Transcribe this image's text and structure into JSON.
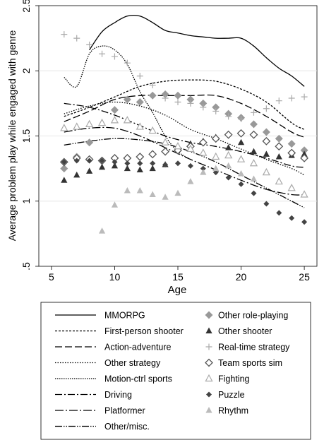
{
  "chart_data": {
    "type": "line",
    "xlabel": "Age",
    "ylabel": "Average problem play while engaged with genre",
    "xlim": [
      4,
      26
    ],
    "ylim": [
      0.5,
      2.5
    ],
    "xticks": [
      5,
      10,
      15,
      20,
      25
    ],
    "xtick_labels": [
      "5",
      "10",
      "15",
      "20",
      "25"
    ],
    "yticks": [
      0.5,
      1,
      1.5,
      2,
      2.5
    ],
    "ytick_labels": [
      ".5",
      "1",
      "1.5",
      "2",
      "2.5"
    ],
    "grid": "horizontal",
    "legend_position": "bottom",
    "line_series": [
      {
        "name": "MMORPG",
        "dash": "solid",
        "points": [
          [
            8,
            2.16
          ],
          [
            9,
            2.3
          ],
          [
            10,
            2.37
          ],
          [
            11,
            2.42
          ],
          [
            12,
            2.42
          ],
          [
            13,
            2.37
          ],
          [
            14,
            2.31
          ],
          [
            15,
            2.29
          ],
          [
            16,
            2.27
          ],
          [
            17,
            2.26
          ],
          [
            18,
            2.25
          ],
          [
            19,
            2.25
          ],
          [
            20,
            2.25
          ],
          [
            21,
            2.19
          ],
          [
            22,
            2.1
          ],
          [
            23,
            2.02
          ],
          [
            24,
            1.96
          ],
          [
            25,
            1.88
          ]
        ]
      },
      {
        "name": "First-person shooter",
        "dash": "3,2",
        "points": [
          [
            6,
            1.65
          ],
          [
            8,
            1.72
          ],
          [
            10,
            1.8
          ],
          [
            12,
            1.88
          ],
          [
            14,
            1.92
          ],
          [
            16,
            1.93
          ],
          [
            18,
            1.92
          ],
          [
            20,
            1.86
          ],
          [
            22,
            1.76
          ],
          [
            24,
            1.6
          ],
          [
            25,
            1.55
          ]
        ]
      },
      {
        "name": "Action-adventure",
        "dash": "10,4",
        "points": [
          [
            6,
            1.61
          ],
          [
            8,
            1.69
          ],
          [
            10,
            1.78
          ],
          [
            12,
            1.81
          ],
          [
            14,
            1.81
          ],
          [
            16,
            1.81
          ],
          [
            18,
            1.81
          ],
          [
            20,
            1.75
          ],
          [
            22,
            1.65
          ],
          [
            24,
            1.53
          ],
          [
            25,
            1.49
          ]
        ]
      },
      {
        "name": "Other strategy",
        "dash": "1.5,2",
        "points": [
          [
            6,
            1.67
          ],
          [
            8,
            1.73
          ],
          [
            10,
            1.76
          ],
          [
            12,
            1.73
          ],
          [
            14,
            1.66
          ],
          [
            16,
            1.55
          ],
          [
            18,
            1.48
          ],
          [
            20,
            1.4
          ],
          [
            22,
            1.32
          ],
          [
            24,
            1.25
          ],
          [
            25,
            1.2
          ]
        ]
      },
      {
        "name": "Motion-ctrl sports",
        "dash": "1.5,1.5",
        "points": [
          [
            6,
            1.95
          ],
          [
            7,
            1.88
          ],
          [
            8,
            2.13
          ],
          [
            9,
            2.19
          ],
          [
            10,
            2.16
          ],
          [
            11,
            2.05
          ],
          [
            12,
            1.84
          ],
          [
            13,
            1.68
          ],
          [
            14,
            1.5
          ],
          [
            15,
            1.38
          ],
          [
            16,
            1.32
          ]
        ]
      },
      {
        "name": "Driving",
        "dash": "10,3,2,3",
        "points": [
          [
            6,
            1.75
          ],
          [
            8,
            1.72
          ],
          [
            10,
            1.66
          ],
          [
            12,
            1.58
          ],
          [
            14,
            1.5
          ],
          [
            16,
            1.45
          ],
          [
            18,
            1.42
          ],
          [
            20,
            1.38
          ],
          [
            22,
            1.33
          ],
          [
            24,
            1.27
          ],
          [
            25,
            1.26
          ]
        ]
      },
      {
        "name": "Platformer",
        "dash": "12,3,2,3",
        "points": [
          [
            6,
            1.53
          ],
          [
            8,
            1.56
          ],
          [
            10,
            1.56
          ],
          [
            12,
            1.5
          ],
          [
            14,
            1.41
          ],
          [
            16,
            1.32
          ],
          [
            18,
            1.24
          ],
          [
            20,
            1.16
          ],
          [
            22,
            1.09
          ],
          [
            24,
            1.05
          ],
          [
            25,
            1.05
          ]
        ]
      },
      {
        "name": "Other/misc.",
        "dash": "10,2,1.5,2,1.5,2",
        "points": [
          [
            6,
            1.43
          ],
          [
            8,
            1.46
          ],
          [
            10,
            1.48
          ],
          [
            12,
            1.47
          ],
          [
            14,
            1.44
          ],
          [
            16,
            1.38
          ],
          [
            18,
            1.3
          ],
          [
            20,
            1.2
          ],
          [
            22,
            1.1
          ],
          [
            24,
            1.0
          ],
          [
            25,
            0.95
          ]
        ]
      }
    ],
    "marker_series": [
      {
        "name": "Other role-playing",
        "marker": "diamond",
        "color": "#999999",
        "points": [
          [
            6,
            1.25
          ],
          [
            7,
            1.34
          ],
          [
            8,
            1.45
          ],
          [
            10,
            1.7
          ],
          [
            11,
            1.78
          ],
          [
            12,
            1.76
          ],
          [
            13,
            1.81
          ],
          [
            14,
            1.82
          ],
          [
            15,
            1.81
          ],
          [
            16,
            1.78
          ],
          [
            17,
            1.75
          ],
          [
            18,
            1.72
          ],
          [
            19,
            1.67
          ],
          [
            20,
            1.64
          ],
          [
            21,
            1.59
          ],
          [
            22,
            1.53
          ],
          [
            23,
            1.48
          ],
          [
            24,
            1.44
          ],
          [
            25,
            1.39
          ]
        ]
      },
      {
        "name": "Other shooter",
        "marker": "triangle",
        "color": "#333333",
        "points": [
          [
            6,
            1.16
          ],
          [
            7,
            1.2
          ],
          [
            8,
            1.23
          ],
          [
            9,
            1.26
          ],
          [
            10,
            1.27
          ],
          [
            11,
            1.25
          ],
          [
            12,
            1.24
          ],
          [
            13,
            1.25
          ],
          [
            14,
            1.28
          ],
          [
            15,
            1.4
          ],
          [
            16,
            1.44
          ],
          [
            17,
            1.46
          ],
          [
            18,
            1.49
          ],
          [
            19,
            1.41
          ],
          [
            20,
            1.45
          ],
          [
            21,
            1.38
          ],
          [
            22,
            1.36
          ],
          [
            23,
            1.34
          ],
          [
            24,
            1.35
          ],
          [
            25,
            1.36
          ]
        ]
      },
      {
        "name": "Real-time strategy",
        "marker": "plus",
        "color": "#aaaaaa",
        "points": [
          [
            6,
            2.28
          ],
          [
            7,
            2.25
          ],
          [
            8,
            2.2
          ],
          [
            9,
            2.13
          ],
          [
            10,
            2.11
          ],
          [
            11,
            2.06
          ],
          [
            12,
            1.96
          ],
          [
            13,
            1.89
          ],
          [
            14,
            1.79
          ],
          [
            15,
            1.76
          ],
          [
            16,
            1.75
          ],
          [
            17,
            1.72
          ],
          [
            18,
            1.69
          ],
          [
            19,
            1.65
          ],
          [
            20,
            1.63
          ],
          [
            21,
            1.68
          ],
          [
            22,
            1.71
          ],
          [
            23,
            1.77
          ],
          [
            24,
            1.79
          ],
          [
            25,
            1.8
          ]
        ]
      },
      {
        "name": "Team sports sim",
        "marker": "diamond-open",
        "color": "#555555",
        "points": [
          [
            6,
            1.3
          ],
          [
            7,
            1.33
          ],
          [
            8,
            1.32
          ],
          [
            9,
            1.31
          ],
          [
            10,
            1.33
          ],
          [
            11,
            1.33
          ],
          [
            12,
            1.34
          ],
          [
            13,
            1.36
          ],
          [
            14,
            1.38
          ],
          [
            15,
            1.39
          ],
          [
            16,
            1.42
          ],
          [
            17,
            1.45
          ],
          [
            18,
            1.48
          ],
          [
            19,
            1.51
          ],
          [
            20,
            1.52
          ],
          [
            21,
            1.51
          ],
          [
            22,
            1.46
          ],
          [
            23,
            1.42
          ],
          [
            24,
            1.37
          ],
          [
            25,
            1.33
          ]
        ]
      },
      {
        "name": "Fighting",
        "marker": "triangle-open",
        "color": "#aaaaaa",
        "points": [
          [
            6,
            1.56
          ],
          [
            7,
            1.57
          ],
          [
            8,
            1.59
          ],
          [
            9,
            1.6
          ],
          [
            10,
            1.62
          ],
          [
            11,
            1.62
          ],
          [
            12,
            1.57
          ],
          [
            13,
            1.54
          ],
          [
            14,
            1.45
          ],
          [
            15,
            1.42
          ],
          [
            16,
            1.4
          ],
          [
            17,
            1.37
          ],
          [
            18,
            1.34
          ],
          [
            19,
            1.35
          ],
          [
            20,
            1.32
          ],
          [
            21,
            1.29
          ],
          [
            22,
            1.22
          ],
          [
            23,
            1.15
          ],
          [
            24,
            1.1
          ],
          [
            25,
            1.05
          ]
        ]
      },
      {
        "name": "Puzzle",
        "marker": "diamond-small",
        "color": "#444444",
        "points": [
          [
            6,
            1.3
          ],
          [
            7,
            1.31
          ],
          [
            8,
            1.31
          ],
          [
            9,
            1.31
          ],
          [
            10,
            1.3
          ],
          [
            11,
            1.29
          ],
          [
            12,
            1.29
          ],
          [
            13,
            1.29
          ],
          [
            14,
            1.28
          ],
          [
            15,
            1.29
          ],
          [
            16,
            1.27
          ],
          [
            17,
            1.25
          ],
          [
            18,
            1.22
          ],
          [
            19,
            1.18
          ],
          [
            20,
            1.13
          ],
          [
            21,
            1.06
          ],
          [
            22,
            0.98
          ],
          [
            23,
            0.91
          ],
          [
            24,
            0.87
          ],
          [
            25,
            0.84
          ]
        ]
      },
      {
        "name": "Rhythm",
        "marker": "triangle",
        "color": "#bbbbbb",
        "points": [
          [
            9,
            0.77
          ],
          [
            10,
            0.97
          ],
          [
            11,
            1.08
          ],
          [
            12,
            1.08
          ],
          [
            13,
            1.05
          ],
          [
            14,
            1.03
          ],
          [
            15,
            1.06
          ],
          [
            16,
            1.15
          ],
          [
            17,
            1.22
          ],
          [
            18,
            1.25
          ],
          [
            19,
            1.27
          ],
          [
            20,
            1.21
          ],
          [
            21,
            1.17
          ]
        ]
      }
    ]
  }
}
